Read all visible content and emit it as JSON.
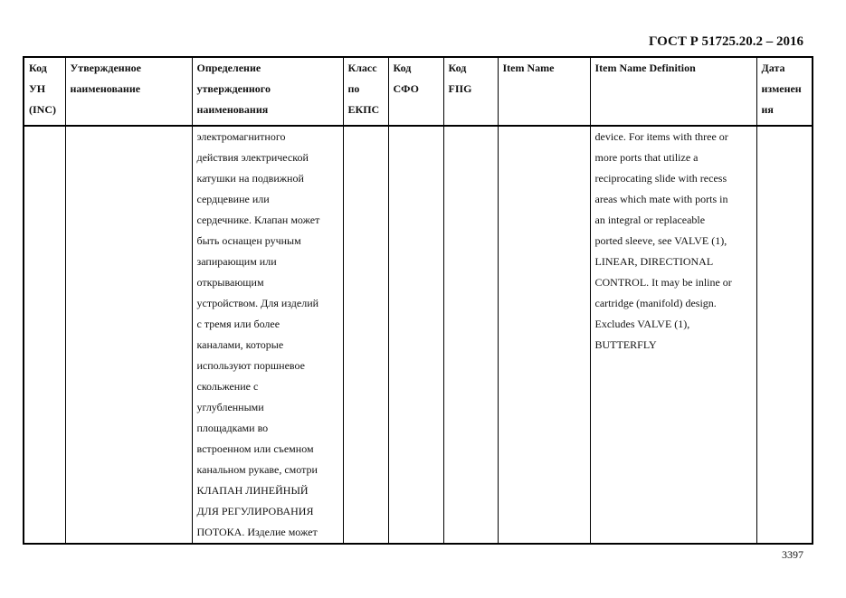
{
  "header": {
    "doc_title": "ГОСТ Р 51725.20.2 – 2016"
  },
  "table": {
    "columns": [
      [
        "Код",
        "УН",
        "(INC)"
      ],
      [
        "Утвержденное",
        "наименование"
      ],
      [
        "Определение",
        "утвержденного",
        "наименования"
      ],
      [
        "Класс",
        "по",
        "ЕКПС"
      ],
      [
        "Код",
        "СФО"
      ],
      [
        "Код",
        "FIIG"
      ],
      [
        "Item Name"
      ],
      [
        "Item Name Definition"
      ],
      [
        "Дата",
        "изменен",
        "ия"
      ]
    ],
    "row": {
      "definition_ru": [
        "электромагнитного",
        "действия электрической",
        "катушки на подвижной",
        "сердцевине или",
        "сердечнике. Клапан может",
        "быть оснащен ручным",
        "запирающим или",
        "открывающим",
        "устройством. Для изделий",
        "с тремя или более",
        "каналами, которые",
        "используют поршневое",
        "скольжение с",
        "углубленными",
        "площадками во",
        "встроенном или съемном",
        "канальном рукаве, смотри",
        "КЛАПАН ЛИНЕЙНЫЙ",
        "ДЛЯ РЕГУЛИРОВАНИЯ",
        "ПОТОКА. Изделие может"
      ],
      "definition_en": [
        "device. For items with three or",
        "more ports that utilize a",
        "reciprocating slide with recess",
        "areas which mate with ports in",
        "an integral or replaceable",
        "ported sleeve, see VALVE (1),",
        "LINEAR, DIRECTIONAL",
        "CONTROL. It may be inline or",
        "cartridge (manifold) design.",
        "Excludes VALVE (1),",
        "BUTTERFLY"
      ]
    }
  },
  "footer": {
    "page_number": "3397"
  }
}
